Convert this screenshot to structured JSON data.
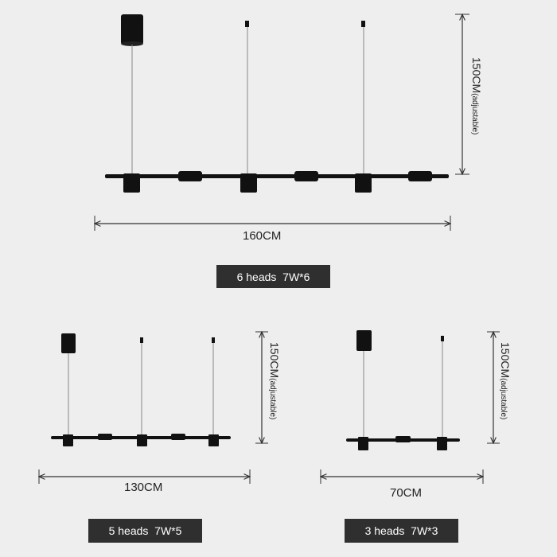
{
  "lamp_large": {
    "width_label": "160CM",
    "height_label_main": "150CM",
    "height_label_note": "(adjustable)",
    "spec_label": "6 heads  7W*6"
  },
  "lamp_medium": {
    "width_label": "130CM",
    "height_label_main": "150CM",
    "height_label_note": "(adjustable)",
    "spec_label": "5 heads  7W*5"
  },
  "lamp_small": {
    "width_label": "70CM",
    "height_label_main": "150CM",
    "height_label_note": "(adjustable)",
    "spec_label": "3 heads  7W*3"
  },
  "colors": {
    "background": "#eeeeee",
    "fixture": "#111111",
    "dimension_line": "#333333",
    "badge": "#2f2f2f"
  }
}
